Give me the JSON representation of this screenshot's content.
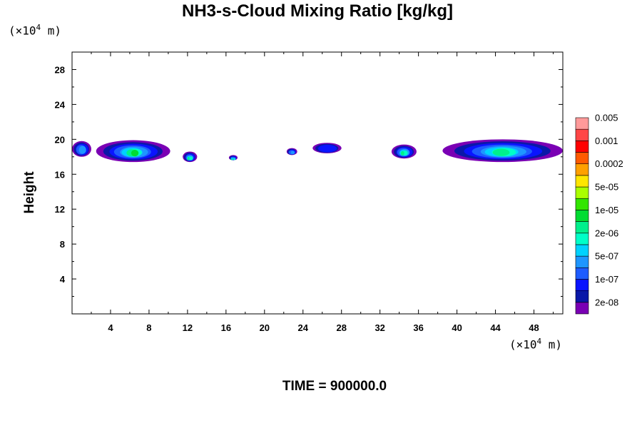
{
  "chart_data": {
    "type": "heatmap",
    "title": "NH3-s-Cloud Mixing Ratio [kg/kg]",
    "ylabel": "Height",
    "y_unit": {
      "prefix": "(×10",
      "exp": "4",
      "suffix": " m)"
    },
    "x_unit": {
      "prefix": "(×10",
      "exp": "4",
      "suffix": " m)"
    },
    "xlim": [
      0,
      51
    ],
    "ylim": [
      0,
      30
    ],
    "x_ticks": [
      4,
      8,
      12,
      16,
      20,
      24,
      28,
      32,
      36,
      40,
      44,
      48
    ],
    "y_ticks": [
      4,
      8,
      12,
      16,
      20,
      24,
      28
    ],
    "annotation": "TIME = 900000.0",
    "colorbar": {
      "colors": [
        "#7a00b4",
        "#0a18a8",
        "#0a14ff",
        "#1e5cff",
        "#1e96ff",
        "#00d2ff",
        "#00ffc8",
        "#00f08c",
        "#00dc32",
        "#32e600",
        "#aaff00",
        "#ffe600",
        "#ffa000",
        "#ff5a00",
        "#ff0000",
        "#ff4646",
        "#ff9a9a"
      ],
      "labels": [
        "2e-08",
        "1e-07",
        "5e-07",
        "2e-06",
        "1e-05",
        "5e-05",
        "0.0002",
        "0.001",
        "0.005"
      ]
    },
    "cloud_patches": [
      {
        "x": [
          0.0,
          2.0
        ],
        "y": [
          18.0,
          19.8
        ],
        "level": 4
      },
      {
        "x": [
          2.5,
          10.2
        ],
        "y": [
          17.4,
          19.9
        ],
        "level": 8
      },
      {
        "x": [
          11.5,
          13.0
        ],
        "y": [
          17.4,
          18.6
        ],
        "level": 7
      },
      {
        "x": [
          16.3,
          17.2
        ],
        "y": [
          17.6,
          18.2
        ],
        "level": 7
      },
      {
        "x": [
          22.3,
          23.4
        ],
        "y": [
          18.2,
          19.0
        ],
        "level": 4
      },
      {
        "x": [
          25.0,
          28.0
        ],
        "y": [
          18.4,
          19.6
        ],
        "level": 2
      },
      {
        "x": [
          33.2,
          35.8
        ],
        "y": [
          17.8,
          19.4
        ],
        "level": 7
      },
      {
        "x": [
          38.5,
          51.0
        ],
        "y": [
          17.4,
          20.0
        ],
        "level": 7
      }
    ]
  }
}
